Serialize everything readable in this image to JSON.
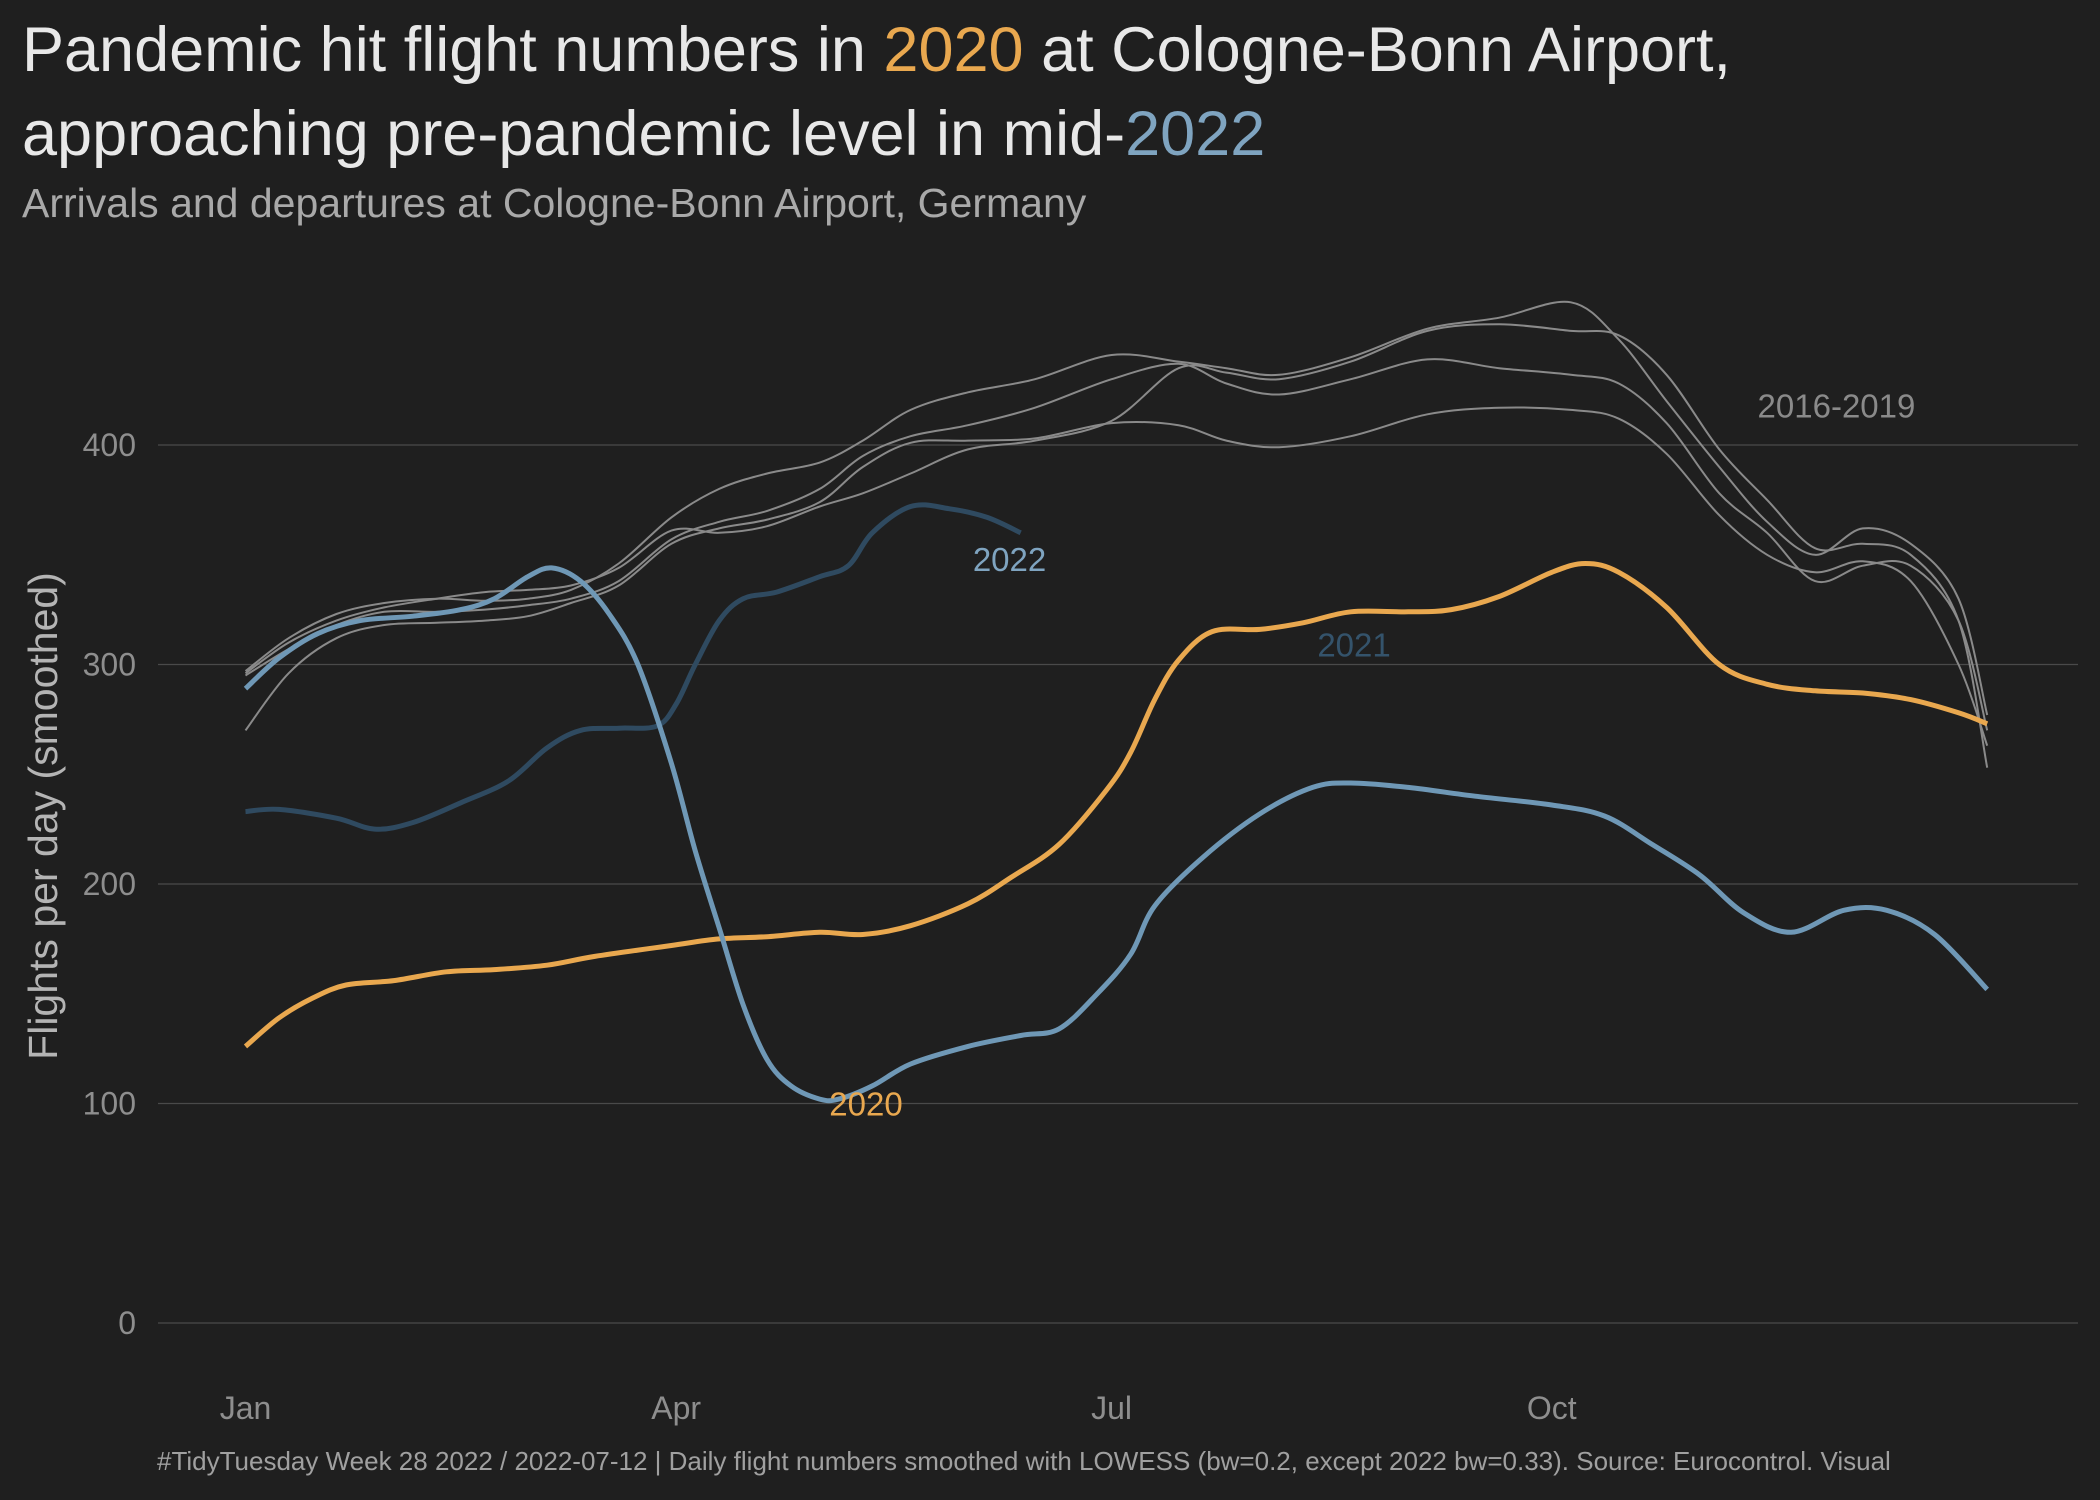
{
  "header": {
    "title_part1": "Pandemic hit flight numbers in ",
    "title_hl1": "2020",
    "title_part2": " at Cologne-Bonn Airport,",
    "title_part3": "approaching pre-pandemic level in mid-",
    "title_hl2": "2022",
    "subtitle": "Arrivals and departures at Cologne-Bonn Airport, Germany"
  },
  "caption": "#TidyTuesday Week 28 2022 / 2022-07-12 | Daily flight numbers smoothed with LOWESS (bw=0.2, except 2022 bw=0.33). Source: Eurocontrol. Visual",
  "colors": {
    "background": "#1f1f1f",
    "grid": "#4a4a4a",
    "baseline_years": "#8a8a8a",
    "y2020": "#e9a84f",
    "y2021": "#2f4a60",
    "y2022": "#6f98b6",
    "label_2016_2019": "#8a8a8a",
    "label_2021": "#34536b",
    "label_2022": "#7fa4c0"
  },
  "chart_data": {
    "type": "line",
    "title": "Pandemic hit flight numbers in 2020 at Cologne-Bonn Airport, approaching pre-pandemic level in mid-2022",
    "subtitle": "Arrivals and departures at Cologne-Bonn Airport, Germany",
    "xlabel": "",
    "ylabel": "Flights per day (smoothed)",
    "xlim": [
      "01-01",
      "12-31"
    ],
    "ylim": [
      -25,
      480
    ],
    "x_ticks": [
      {
        "date": "01-01",
        "label": "Jan"
      },
      {
        "date": "04-01",
        "label": "Apr"
      },
      {
        "date": "07-01",
        "label": "Jul"
      },
      {
        "date": "10-01",
        "label": "Oct"
      }
    ],
    "y_ticks": [
      0,
      100,
      200,
      300,
      400
    ],
    "grid": "horizontal",
    "legend": "none (direct labels)",
    "group_labels": [
      {
        "text": "2016-2019",
        "date": "11-13",
        "y": 418
      },
      {
        "text": "2021",
        "date": "08-13",
        "y": 309
      },
      {
        "text": "2022",
        "date": "06-02",
        "y": 348
      },
      {
        "text": "2020",
        "date": "05-03",
        "y": 100
      }
    ],
    "series": [
      {
        "key": "2016",
        "group": "baseline",
        "points": [
          [
            "01-01",
            270
          ],
          [
            "01-10",
            296
          ],
          [
            "01-20",
            312
          ],
          [
            "01-30",
            318
          ],
          [
            "02-10",
            319
          ],
          [
            "02-20",
            320
          ],
          [
            "03-01",
            322
          ],
          [
            "03-10",
            328
          ],
          [
            "03-20",
            336
          ],
          [
            "03-31",
            355
          ],
          [
            "04-10",
            362
          ],
          [
            "04-20",
            366
          ],
          [
            "05-01",
            374
          ],
          [
            "05-10",
            390
          ],
          [
            "05-20",
            401
          ],
          [
            "06-01",
            402
          ],
          [
            "06-15",
            403
          ],
          [
            "07-01",
            410
          ],
          [
            "07-15",
            409
          ],
          [
            "07-25",
            402
          ],
          [
            "08-05",
            399
          ],
          [
            "08-20",
            404
          ],
          [
            "09-05",
            414
          ],
          [
            "09-20",
            417
          ],
          [
            "10-05",
            416
          ],
          [
            "10-15",
            412
          ],
          [
            "10-25",
            396
          ],
          [
            "11-05",
            368
          ],
          [
            "11-15",
            350
          ],
          [
            "11-25",
            342
          ],
          [
            "12-05",
            347
          ],
          [
            "12-15",
            338
          ],
          [
            "12-25",
            300
          ],
          [
            "12-31",
            263
          ]
        ]
      },
      {
        "key": "2017",
        "group": "baseline",
        "points": [
          [
            "01-01",
            296
          ],
          [
            "01-10",
            310
          ],
          [
            "01-20",
            320
          ],
          [
            "01-30",
            326
          ],
          [
            "02-10",
            330
          ],
          [
            "02-20",
            333
          ],
          [
            "03-01",
            334
          ],
          [
            "03-10",
            336
          ],
          [
            "03-20",
            344
          ],
          [
            "03-31",
            361
          ],
          [
            "04-10",
            360
          ],
          [
            "04-20",
            363
          ],
          [
            "05-01",
            372
          ],
          [
            "05-10",
            378
          ],
          [
            "05-20",
            387
          ],
          [
            "06-01",
            398
          ],
          [
            "06-15",
            402
          ],
          [
            "07-01",
            411
          ],
          [
            "07-15",
            435
          ],
          [
            "07-25",
            433
          ],
          [
            "08-05",
            430
          ],
          [
            "08-20",
            438
          ],
          [
            "09-05",
            452
          ],
          [
            "09-20",
            455
          ],
          [
            "10-05",
            452
          ],
          [
            "10-15",
            450
          ],
          [
            "10-25",
            432
          ],
          [
            "11-05",
            398
          ],
          [
            "11-15",
            375
          ],
          [
            "11-25",
            353
          ],
          [
            "12-05",
            355
          ],
          [
            "12-15",
            350
          ],
          [
            "12-25",
            320
          ],
          [
            "12-31",
            253
          ]
        ]
      },
      {
        "key": "2018",
        "group": "baseline",
        "points": [
          [
            "01-01",
            297
          ],
          [
            "01-10",
            312
          ],
          [
            "01-20",
            323
          ],
          [
            "01-30",
            328
          ],
          [
            "02-10",
            330
          ],
          [
            "02-20",
            329
          ],
          [
            "03-01",
            330
          ],
          [
            "03-10",
            334
          ],
          [
            "03-20",
            346
          ],
          [
            "03-31",
            367
          ],
          [
            "04-10",
            380
          ],
          [
            "04-20",
            387
          ],
          [
            "05-01",
            392
          ],
          [
            "05-10",
            402
          ],
          [
            "05-20",
            416
          ],
          [
            "06-01",
            424
          ],
          [
            "06-15",
            430
          ],
          [
            "07-01",
            441
          ],
          [
            "07-15",
            438
          ],
          [
            "07-25",
            435
          ],
          [
            "08-05",
            432
          ],
          [
            "08-20",
            440
          ],
          [
            "09-05",
            453
          ],
          [
            "09-20",
            458
          ],
          [
            "10-05",
            465
          ],
          [
            "10-15",
            448
          ],
          [
            "10-25",
            420
          ],
          [
            "11-05",
            390
          ],
          [
            "11-15",
            365
          ],
          [
            "11-25",
            350
          ],
          [
            "12-05",
            362
          ],
          [
            "12-15",
            355
          ],
          [
            "12-25",
            330
          ],
          [
            "12-31",
            277
          ]
        ]
      },
      {
        "key": "2019",
        "group": "baseline",
        "points": [
          [
            "01-01",
            295
          ],
          [
            "01-10",
            307
          ],
          [
            "01-20",
            318
          ],
          [
            "01-30",
            324
          ],
          [
            "02-10",
            324
          ],
          [
            "02-20",
            325
          ],
          [
            "03-01",
            327
          ],
          [
            "03-10",
            330
          ],
          [
            "03-20",
            338
          ],
          [
            "03-31",
            357
          ],
          [
            "04-10",
            365
          ],
          [
            "04-20",
            370
          ],
          [
            "05-01",
            380
          ],
          [
            "05-10",
            395
          ],
          [
            "05-20",
            404
          ],
          [
            "06-01",
            409
          ],
          [
            "06-15",
            417
          ],
          [
            "07-01",
            430
          ],
          [
            "07-15",
            437
          ],
          [
            "07-25",
            428
          ],
          [
            "08-05",
            423
          ],
          [
            "08-20",
            430
          ],
          [
            "09-05",
            439
          ],
          [
            "09-20",
            435
          ],
          [
            "10-05",
            432
          ],
          [
            "10-15",
            428
          ],
          [
            "10-25",
            410
          ],
          [
            "11-05",
            378
          ],
          [
            "11-15",
            360
          ],
          [
            "11-25",
            338
          ],
          [
            "12-05",
            345
          ],
          [
            "12-15",
            345
          ],
          [
            "12-25",
            320
          ],
          [
            "12-31",
            270
          ]
        ]
      },
      {
        "key": "2020",
        "group": "2020",
        "points": [
          [
            "01-01",
            126
          ],
          [
            "01-08",
            139
          ],
          [
            "01-15",
            148
          ],
          [
            "01-22",
            154
          ],
          [
            "02-01",
            156
          ],
          [
            "02-12",
            160
          ],
          [
            "02-22",
            161
          ],
          [
            "03-05",
            163
          ],
          [
            "03-15",
            167
          ],
          [
            "03-31",
            172
          ],
          [
            "04-10",
            175
          ],
          [
            "04-20",
            176
          ],
          [
            "05-01",
            178
          ],
          [
            "05-10",
            177
          ],
          [
            "05-20",
            181
          ],
          [
            "06-01",
            191
          ],
          [
            "06-10",
            203
          ],
          [
            "06-20",
            218
          ],
          [
            "06-30",
            243
          ],
          [
            "07-05",
            260
          ],
          [
            "07-10",
            284
          ],
          [
            "07-15",
            302
          ],
          [
            "07-22",
            315
          ],
          [
            "08-01",
            316
          ],
          [
            "08-10",
            319
          ],
          [
            "08-20",
            324
          ],
          [
            "09-01",
            324
          ],
          [
            "09-10",
            325
          ],
          [
            "09-20",
            331
          ],
          [
            "10-01",
            342
          ],
          [
            "10-08",
            346
          ],
          [
            "10-15",
            342
          ],
          [
            "10-25",
            326
          ],
          [
            "11-05",
            300
          ],
          [
            "11-15",
            291
          ],
          [
            "11-25",
            288
          ],
          [
            "12-05",
            287
          ],
          [
            "12-15",
            284
          ],
          [
            "12-25",
            278
          ],
          [
            "12-31",
            273
          ]
        ]
      },
      {
        "key": "2021",
        "group": "2021",
        "points": [
          [
            "01-01",
            233
          ],
          [
            "01-08",
            234
          ],
          [
            "01-20",
            230
          ],
          [
            "01-28",
            225
          ],
          [
            "02-05",
            228
          ],
          [
            "02-15",
            237
          ],
          [
            "02-25",
            247
          ],
          [
            "03-05",
            262
          ],
          [
            "03-12",
            270
          ],
          [
            "03-20",
            271
          ],
          [
            "03-28",
            272
          ],
          [
            "04-01",
            282
          ],
          [
            "04-05",
            300
          ],
          [
            "04-10",
            320
          ],
          [
            "04-15",
            330
          ],
          [
            "04-22",
            333
          ],
          [
            "05-01",
            340
          ],
          [
            "05-07",
            345
          ],
          [
            "05-12",
            360
          ],
          [
            "05-20",
            372
          ],
          [
            "05-28",
            371
          ],
          [
            "06-05",
            367
          ],
          [
            "06-12",
            360
          ]
        ]
      },
      {
        "key": "2022",
        "group": "2022",
        "points": [
          [
            "01-01",
            289
          ],
          [
            "01-08",
            303
          ],
          [
            "01-16",
            314
          ],
          [
            "01-25",
            320
          ],
          [
            "02-05",
            322
          ],
          [
            "02-15",
            325
          ],
          [
            "02-22",
            330
          ],
          [
            "03-01",
            340
          ],
          [
            "03-06",
            344
          ],
          [
            "03-12",
            338
          ],
          [
            "03-18",
            323
          ],
          [
            "03-24",
            300
          ],
          [
            "03-31",
            255
          ],
          [
            "04-05",
            215
          ],
          [
            "04-10",
            180
          ],
          [
            "04-15",
            145
          ],
          [
            "04-20",
            120
          ],
          [
            "04-25",
            108
          ],
          [
            "05-01",
            102
          ],
          [
            "05-05",
            102
          ],
          [
            "05-12",
            108
          ],
          [
            "05-20",
            118
          ],
          [
            "06-01",
            126
          ],
          [
            "06-12",
            131
          ],
          [
            "06-20",
            134
          ],
          [
            "06-28",
            150
          ],
          [
            "07-05",
            168
          ],
          [
            "07-10",
            190
          ],
          [
            "07-20",
            212
          ],
          [
            "08-01",
            232
          ],
          [
            "08-12",
            244
          ],
          [
            "08-20",
            246
          ],
          [
            "09-01",
            244
          ],
          [
            "09-15",
            240
          ],
          [
            "10-01",
            236
          ],
          [
            "10-12",
            231
          ],
          [
            "10-22",
            218
          ],
          [
            "11-01",
            204
          ],
          [
            "11-10",
            187
          ],
          [
            "11-20",
            178
          ],
          [
            "12-01",
            188
          ],
          [
            "12-10",
            188
          ],
          [
            "12-20",
            177
          ],
          [
            "12-31",
            152
          ]
        ]
      }
    ]
  }
}
